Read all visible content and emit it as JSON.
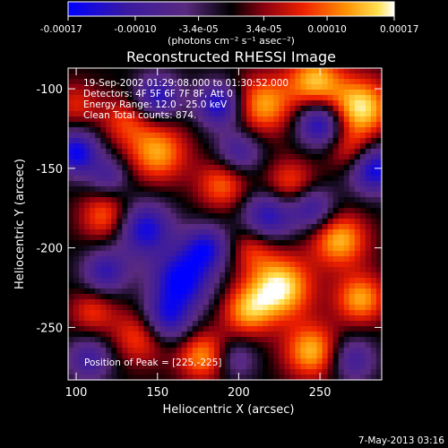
{
  "chart_data": {
    "type": "heatmap",
    "title": "Reconstructed RHESSI Image",
    "xlabel": "Heliocentric X (arcsec)",
    "ylabel": "Heliocentric Y (arcsec)",
    "xlim": [
      95,
      288
    ],
    "ylim": [
      -283,
      -87
    ],
    "x_ticks": [
      100,
      150,
      200,
      250
    ],
    "y_ticks": [
      -100,
      -150,
      -200,
      -250
    ],
    "colorbar": {
      "range": [
        -0.00017,
        0.00017
      ],
      "ticks": [
        "-0.00017",
        "-0.00010",
        "-3.4e-05",
        "3.4e-05",
        "0.00010",
        "0.00017"
      ],
      "tick_values": [
        -0.00017,
        -0.0001,
        -3.4e-05,
        3.4e-05,
        0.0001,
        0.00017
      ],
      "units": "(photons cm⁻² s⁻¹ asec⁻²)"
    },
    "annotations": [
      "19-Sep-2002 01:29:08.000 to 01:30:52.000",
      "Detectors: 4F 5F 6F 7F 8F, Att 0",
      "Energy Range: 12.0 - 25.0 keV",
      "Clean    Total counts: 874."
    ],
    "peak_label": "Position of Peak = [225,-225]",
    "peak": [
      225,
      -225
    ],
    "blobs": [
      {
        "x": 225,
        "y": -225,
        "amp": 1.0,
        "s": 14
      },
      {
        "x": 275,
        "y": -112,
        "amp": 0.95,
        "s": 13
      },
      {
        "x": 247,
        "y": -95,
        "amp": 0.8,
        "s": 12
      },
      {
        "x": 262,
        "y": -195,
        "amp": 0.8,
        "s": 12
      },
      {
        "x": 275,
        "y": -232,
        "amp": 0.75,
        "s": 11
      },
      {
        "x": 245,
        "y": -265,
        "amp": 0.8,
        "s": 12
      },
      {
        "x": 205,
        "y": -240,
        "amp": 0.65,
        "s": 11
      },
      {
        "x": 215,
        "y": -110,
        "amp": 0.75,
        "s": 13
      },
      {
        "x": 190,
        "y": -160,
        "amp": 0.6,
        "s": 11
      },
      {
        "x": 150,
        "y": -140,
        "amp": 0.75,
        "s": 13
      },
      {
        "x": 130,
        "y": -120,
        "amp": 0.45,
        "s": 11
      },
      {
        "x": 118,
        "y": -180,
        "amp": 0.6,
        "s": 11
      },
      {
        "x": 232,
        "y": -160,
        "amp": 0.55,
        "s": 11
      },
      {
        "x": 140,
        "y": -255,
        "amp": 0.6,
        "s": 12
      },
      {
        "x": 178,
        "y": -268,
        "amp": 0.7,
        "s": 11
      },
      {
        "x": 270,
        "y": -140,
        "amp": 0.5,
        "s": 10
      },
      {
        "x": 100,
        "y": -110,
        "amp": 0.4,
        "s": 10
      },
      {
        "x": 110,
        "y": -240,
        "amp": 0.45,
        "s": 10
      },
      {
        "x": 208,
        "y": -200,
        "amp": 0.4,
        "s": 10
      },
      {
        "x": 100,
        "y": -140,
        "amp": -0.95,
        "s": 10
      },
      {
        "x": 150,
        "y": -105,
        "amp": -0.8,
        "s": 10
      },
      {
        "x": 188,
        "y": -110,
        "amp": -0.9,
        "s": 10
      },
      {
        "x": 142,
        "y": -188,
        "amp": -0.9,
        "s": 12
      },
      {
        "x": 165,
        "y": -220,
        "amp": -1.0,
        "s": 13
      },
      {
        "x": 155,
        "y": -245,
        "amp": -0.85,
        "s": 11
      },
      {
        "x": 180,
        "y": -200,
        "amp": -0.8,
        "s": 10
      },
      {
        "x": 218,
        "y": -180,
        "amp": -0.8,
        "s": 11
      },
      {
        "x": 250,
        "y": -122,
        "amp": -0.9,
        "s": 10
      },
      {
        "x": 283,
        "y": -150,
        "amp": -1.0,
        "s": 11
      },
      {
        "x": 245,
        "y": -175,
        "amp": -0.7,
        "s": 10
      },
      {
        "x": 270,
        "y": -270,
        "amp": -0.6,
        "s": 10
      },
      {
        "x": 118,
        "y": -215,
        "amp": -0.7,
        "s": 10
      },
      {
        "x": 108,
        "y": -270,
        "amp": -0.6,
        "s": 10
      },
      {
        "x": 200,
        "y": -140,
        "amp": -0.6,
        "s": 10
      },
      {
        "x": 120,
        "y": -155,
        "amp": -0.5,
        "s": 9
      },
      {
        "x": 198,
        "y": -270,
        "amp": -0.45,
        "s": 9
      }
    ]
  },
  "footer": {
    "date": "7-May-2013 03:16"
  }
}
